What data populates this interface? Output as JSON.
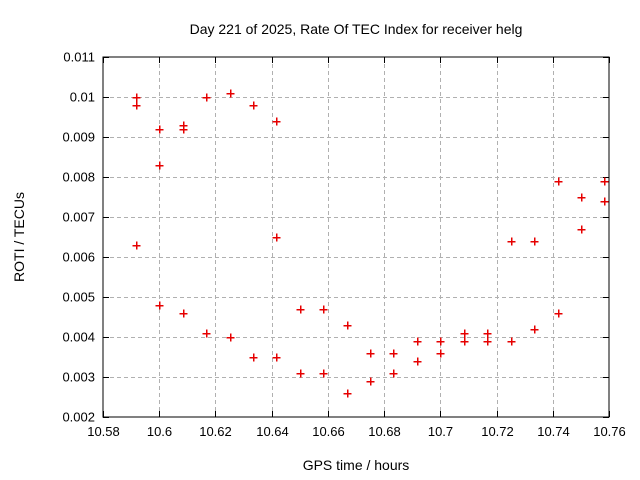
{
  "window": {
    "background": "#ffffff"
  },
  "chart_data": {
    "type": "scatter",
    "title": "Day 221 of 2025, Rate Of TEC Index for receiver helg",
    "xlabel": "GPS time / hours",
    "ylabel": "ROTI / TECUs",
    "xlim": [
      10.58,
      10.76
    ],
    "ylim": [
      0.002,
      0.011
    ],
    "xticks": [
      10.58,
      10.6,
      10.62,
      10.64,
      10.66,
      10.68,
      10.7,
      10.72,
      10.74,
      10.76
    ],
    "xtick_labels": [
      "10.58",
      "10.6",
      "10.62",
      "10.64",
      "10.66",
      "10.68",
      "10.7",
      "10.72",
      "10.74",
      "10.76"
    ],
    "yticks": [
      0.002,
      0.003,
      0.004,
      0.005,
      0.006,
      0.007,
      0.008,
      0.009,
      0.01,
      0.011
    ],
    "ytick_labels": [
      "0.002",
      "0.003",
      "0.004",
      "0.005",
      "0.006",
      "0.007",
      "0.008",
      "0.009",
      "0.01",
      "0.011"
    ],
    "grid": true,
    "legend": false,
    "marker": "plus",
    "colors": {
      "marker": "#e60000",
      "grid": "#b0b0b0",
      "axis": "#000000",
      "text": "#000000",
      "background": "#ffffff"
    },
    "points": [
      [
        10.5917,
        0.01
      ],
      [
        10.5917,
        0.0098
      ],
      [
        10.5917,
        0.0063
      ],
      [
        10.6,
        0.0092
      ],
      [
        10.6,
        0.0083
      ],
      [
        10.6,
        0.0048
      ],
      [
        10.6083,
        0.0093
      ],
      [
        10.6083,
        0.0092
      ],
      [
        10.6083,
        0.0046
      ],
      [
        10.6167,
        0.01
      ],
      [
        10.6167,
        0.0041
      ],
      [
        10.625,
        0.0101
      ],
      [
        10.625,
        0.004
      ],
      [
        10.6333,
        0.0098
      ],
      [
        10.6333,
        0.0035
      ],
      [
        10.6417,
        0.0094
      ],
      [
        10.6417,
        0.0065
      ],
      [
        10.6417,
        0.0035
      ],
      [
        10.65,
        0.0047
      ],
      [
        10.65,
        0.0031
      ],
      [
        10.6583,
        0.0047
      ],
      [
        10.6583,
        0.0031
      ],
      [
        10.6667,
        0.0043
      ],
      [
        10.6667,
        0.0026
      ],
      [
        10.675,
        0.0036
      ],
      [
        10.675,
        0.0029
      ],
      [
        10.6833,
        0.0036
      ],
      [
        10.6833,
        0.0031
      ],
      [
        10.6917,
        0.0039
      ],
      [
        10.6917,
        0.0034
      ],
      [
        10.7,
        0.0039
      ],
      [
        10.7,
        0.0036
      ],
      [
        10.7083,
        0.0041
      ],
      [
        10.7083,
        0.0039
      ],
      [
        10.7167,
        0.0041
      ],
      [
        10.7167,
        0.0039
      ],
      [
        10.725,
        0.0064
      ],
      [
        10.725,
        0.0039
      ],
      [
        10.7333,
        0.0064
      ],
      [
        10.7333,
        0.0042
      ],
      [
        10.7417,
        0.0079
      ],
      [
        10.7417,
        0.0046
      ],
      [
        10.75,
        0.0075
      ],
      [
        10.75,
        0.0067
      ],
      [
        10.7583,
        0.0079
      ],
      [
        10.7583,
        0.0074
      ]
    ]
  }
}
